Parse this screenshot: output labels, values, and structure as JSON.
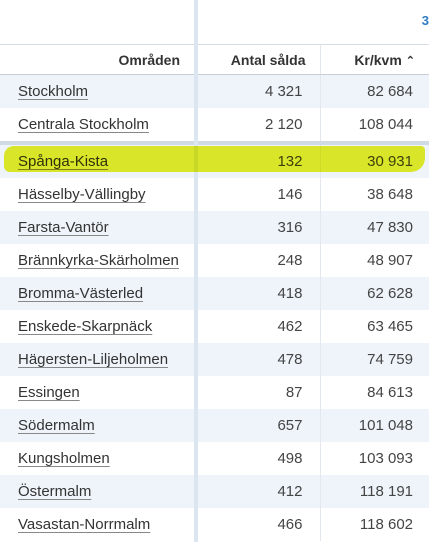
{
  "header_peek": "3",
  "columns": {
    "area": "Områden",
    "sold": "Antal sålda",
    "price": "Kr/kvm"
  },
  "sort_icon": "chevron-up-icon",
  "rows": [
    {
      "area": "Stockholm",
      "sold": "4 321",
      "price": "82 684"
    },
    {
      "area": "Centrala Stockholm",
      "sold": "2 120",
      "price": "108 044"
    },
    {
      "area": "Spånga-Kista",
      "sold": "132",
      "price": "30 931"
    },
    {
      "area": "Hässelby-Vällingby",
      "sold": "146",
      "price": "38 648"
    },
    {
      "area": "Farsta-Vantör",
      "sold": "316",
      "price": "47 830"
    },
    {
      "area": "Brännkyrka-Skärholmen",
      "sold": "248",
      "price": "48 907"
    },
    {
      "area": "Bromma-Västerled",
      "sold": "418",
      "price": "62 628"
    },
    {
      "area": "Enskede-Skarpnäck",
      "sold": "462",
      "price": "63 465"
    },
    {
      "area": "Hägersten-Liljeholmen",
      "sold": "478",
      "price": "74 759"
    },
    {
      "area": "Essingen",
      "sold": "87",
      "price": "84 613"
    },
    {
      "area": "Södermalm",
      "sold": "657",
      "price": "101 048"
    },
    {
      "area": "Kungsholmen",
      "sold": "498",
      "price": "103 093"
    },
    {
      "area": "Östermalm",
      "sold": "412",
      "price": "118 191"
    },
    {
      "area": "Vasastan-Norrmalm",
      "sold": "466",
      "price": "118 602"
    }
  ],
  "highlight_color": "#e8f028"
}
